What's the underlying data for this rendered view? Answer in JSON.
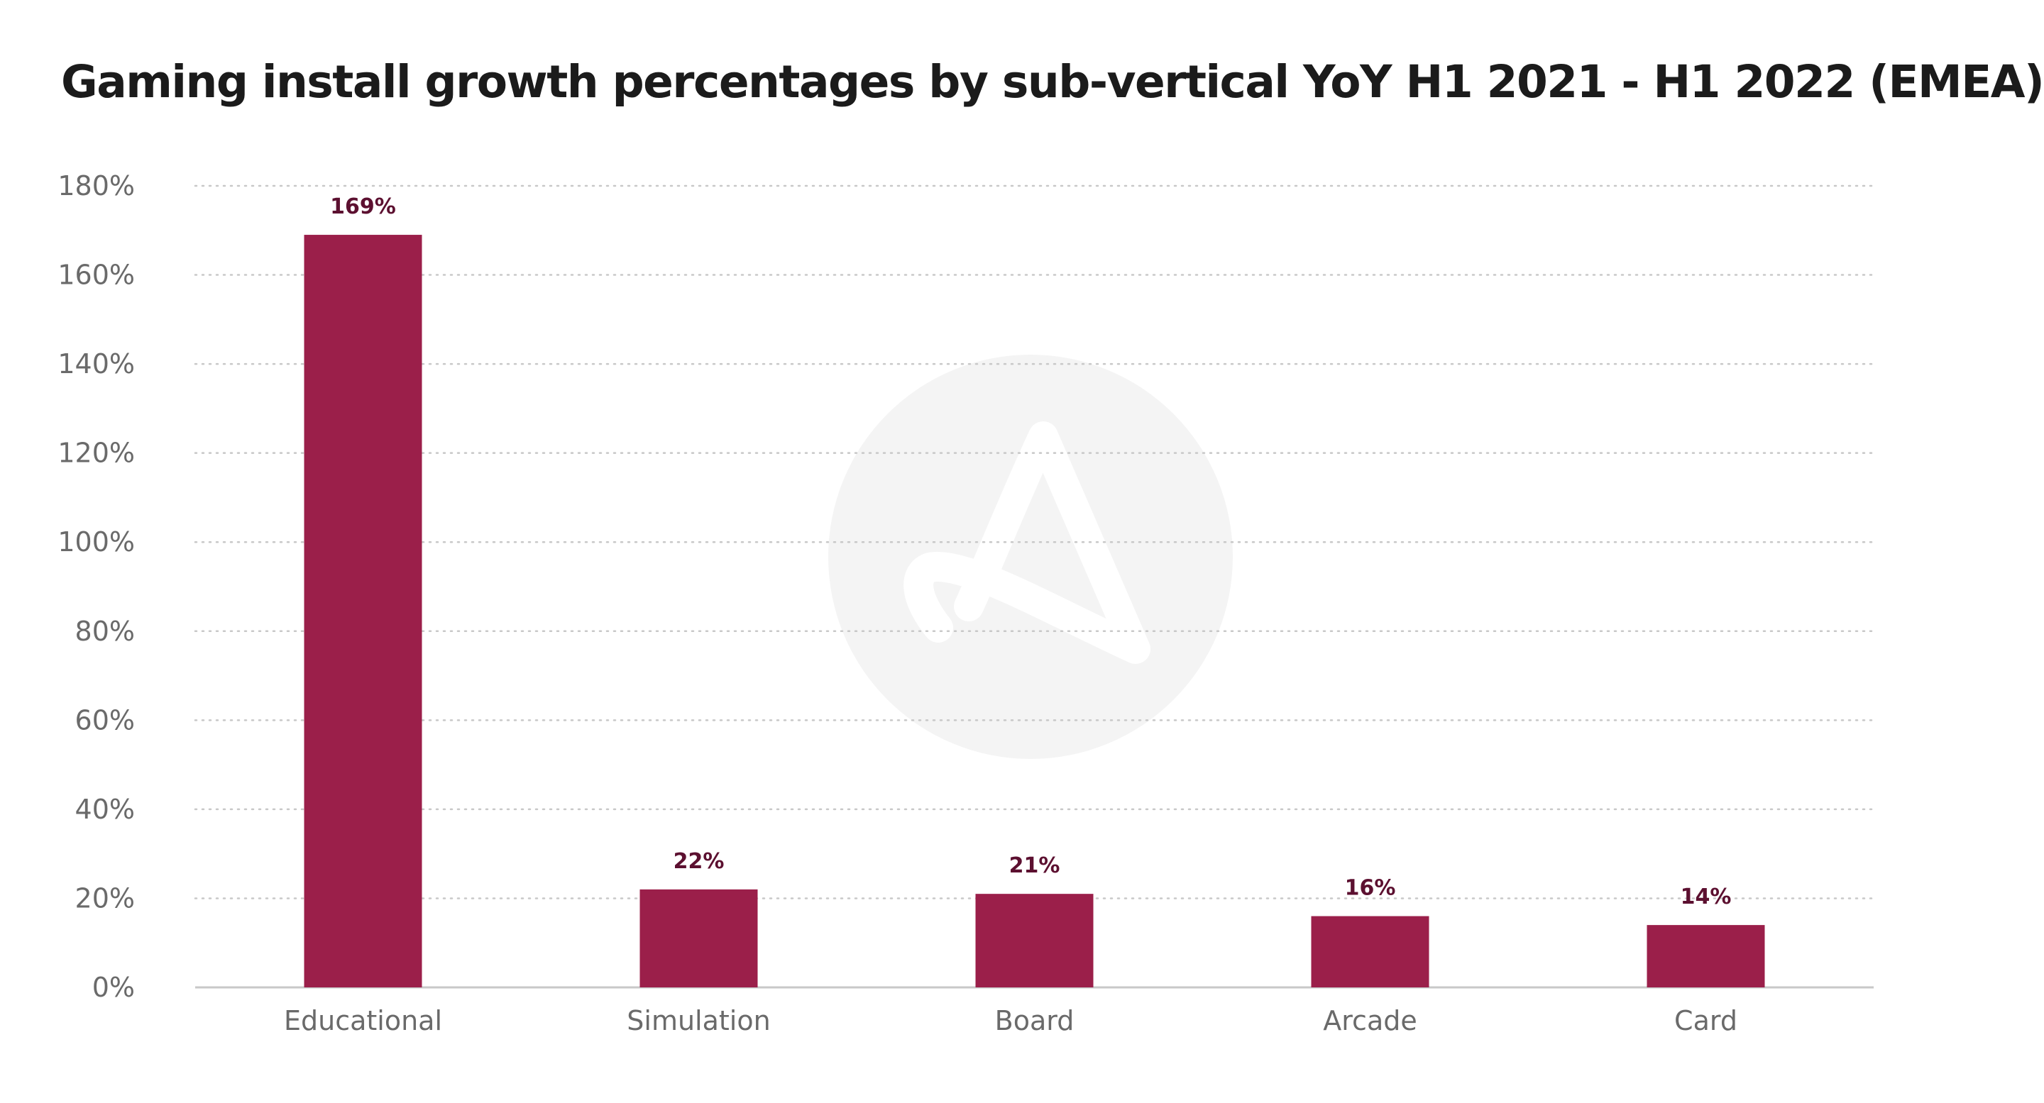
{
  "chart_data": {
    "type": "bar",
    "title": "Gaming install growth percentages by sub-vertical YoY H1 2021 - H1 2022 (EMEA)",
    "xlabel": "",
    "ylabel": "",
    "categories": [
      "Educational",
      "Simulation",
      "Board",
      "Arcade",
      "Card"
    ],
    "values": [
      169,
      22,
      21,
      16,
      14
    ],
    "data_labels": [
      "169%",
      "22%",
      "21%",
      "16%",
      "14%"
    ],
    "ylim": [
      0,
      180
    ],
    "yticks": [
      0,
      20,
      40,
      60,
      80,
      100,
      120,
      140,
      160,
      180
    ],
    "ytick_labels": [
      "0%",
      "20%",
      "40%",
      "60%",
      "80%",
      "100%",
      "120%",
      "140%",
      "160%",
      "180%"
    ],
    "grid": true,
    "grid_style": "dotted",
    "legend": "none",
    "colors": {
      "bar": "#9b1f4a",
      "data_label": "#5c1030",
      "axis_text": "#6a6a6a",
      "grid": "#c8c8c8",
      "baseline": "#c8c8c8",
      "watermark": "#f4f4f4"
    }
  },
  "watermark": {
    "icon": "brand-logo-watermark"
  }
}
